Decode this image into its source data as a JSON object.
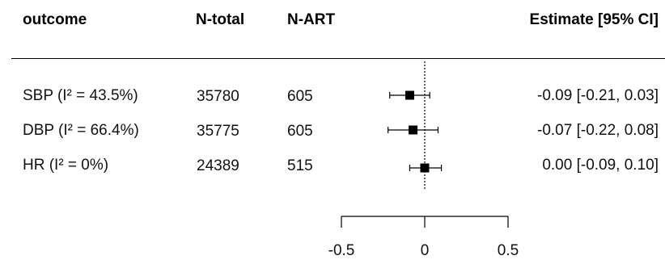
{
  "headers": {
    "outcome": "outcome",
    "n_total": "N-total",
    "n_art": "N-ART",
    "estimate": "Estimate [95% CI]"
  },
  "rows": [
    {
      "outcome": "SBP (I² = 43.5%)",
      "n_total": "35780",
      "n_art": "605",
      "estimate_text": "-0.09 [-0.21, 0.03]"
    },
    {
      "outcome": "DBP (I² = 66.4%)",
      "n_total": "35775",
      "n_art": "605",
      "estimate_text": "-0.07 [-0.22, 0.08]"
    },
    {
      "outcome": "HR (I² = 0%)",
      "n_total": "24389",
      "n_art": "515",
      "estimate_text": "0.00 [-0.09, 0.10]"
    }
  ],
  "chart_data": {
    "type": "forest",
    "categories": [
      "SBP (I² = 43.5%)",
      "DBP (I² = 66.4%)",
      "HR (I² = 0%)"
    ],
    "series": [
      {
        "estimate": [
          -0.09,
          -0.07,
          0.0
        ],
        "ci_lower": [
          -0.21,
          -0.22,
          -0.09
        ],
        "ci_upper": [
          0.03,
          0.08,
          0.1
        ]
      }
    ],
    "xlim": [
      -0.5,
      0.5
    ],
    "xticks": [
      -0.5,
      0,
      0.5
    ],
    "xtick_labels": [
      "-0.5",
      "0",
      "0.5"
    ],
    "reference_line": 0,
    "grid": false
  }
}
